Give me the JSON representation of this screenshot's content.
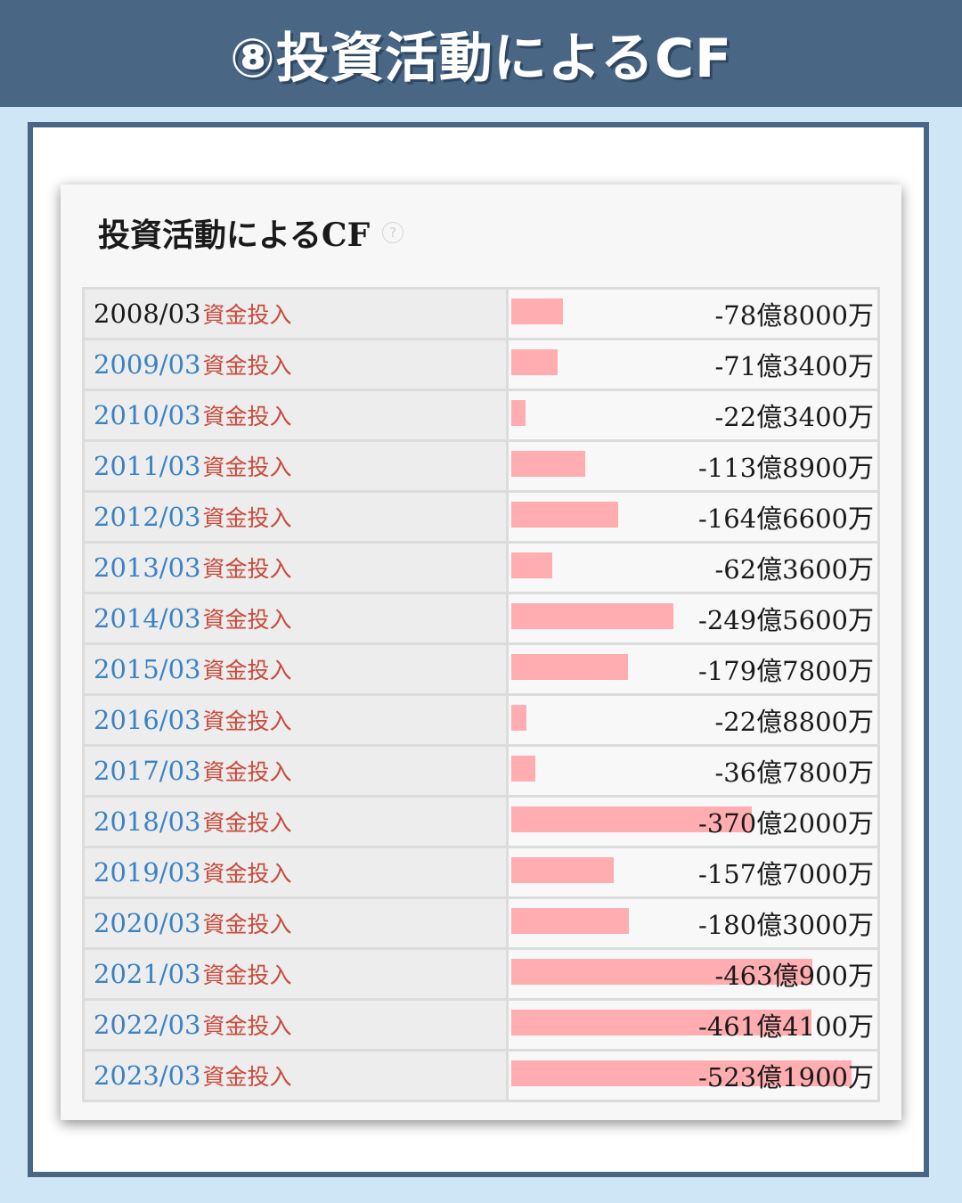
{
  "header": {
    "title": "⑧投資活動によるCF"
  },
  "card": {
    "title": "投資活動によるCF",
    "help_icon": "question-circle-icon"
  },
  "chart_data": {
    "type": "bar",
    "orientation": "horizontal",
    "title": "投資活動によるCF",
    "label_suffix": "資金投入",
    "bar_color": "#ffadb0",
    "categories": [
      "2008/03",
      "2009/03",
      "2010/03",
      "2011/03",
      "2012/03",
      "2013/03",
      "2014/03",
      "2015/03",
      "2016/03",
      "2017/03",
      "2018/03",
      "2019/03",
      "2020/03",
      "2021/03",
      "2022/03",
      "2023/03"
    ],
    "value_labels": [
      "-78億8000万",
      "-71億3400万",
      "-22億3400万",
      "-113億8900万",
      "-164億6600万",
      "-62億3600万",
      "-249億5600万",
      "-179億7800万",
      "-22億8800万",
      "-36億7800万",
      "-370億2000万",
      "-157億7000万",
      "-180億3000万",
      "-463億900万",
      "-461億4100万",
      "-523億1900万"
    ],
    "values": [
      -7880000000,
      -7134000000,
      -2234000000,
      -11389000000,
      -16466000000,
      -6236000000,
      -24956000000,
      -17978000000,
      -2288000000,
      -3678000000,
      -37020000000,
      -15770000000,
      -18030000000,
      -46309000000,
      -46141000000,
      -52319000000
    ]
  }
}
